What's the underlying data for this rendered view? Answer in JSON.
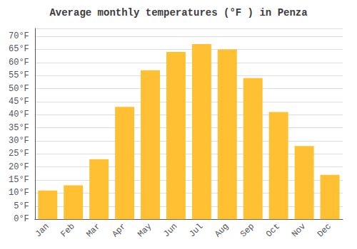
{
  "chart_data": {
    "type": "bar",
    "title": "Average monthly temperatures (°F ) in Penza",
    "categories": [
      "Jan",
      "Feb",
      "Mar",
      "Apr",
      "May",
      "Jun",
      "Jul",
      "Aug",
      "Sep",
      "Oct",
      "Nov",
      "Dec"
    ],
    "values": [
      11,
      13,
      23,
      43,
      57,
      64,
      67,
      65,
      54,
      41,
      28,
      17
    ],
    "color": "#FFC033",
    "ylim": [
      0,
      73
    ],
    "yticks": [
      {
        "value": 0,
        "label": "0°F"
      },
      {
        "value": 5,
        "label": "5°F"
      },
      {
        "value": 10,
        "label": "10°F"
      },
      {
        "value": 15,
        "label": "15°F"
      },
      {
        "value": 20,
        "label": "20°F"
      },
      {
        "value": 25,
        "label": "25°F"
      },
      {
        "value": 30,
        "label": "30°F"
      },
      {
        "value": 35,
        "label": "35°F"
      },
      {
        "value": 40,
        "label": "40°F"
      },
      {
        "value": 45,
        "label": "45°F"
      },
      {
        "value": 50,
        "label": "50°F"
      },
      {
        "value": 55,
        "label": "55°F"
      },
      {
        "value": 60,
        "label": "60°F"
      },
      {
        "value": 65,
        "label": "65°F"
      },
      {
        "value": 70,
        "label": "70°F"
      }
    ],
    "grid": true
  }
}
